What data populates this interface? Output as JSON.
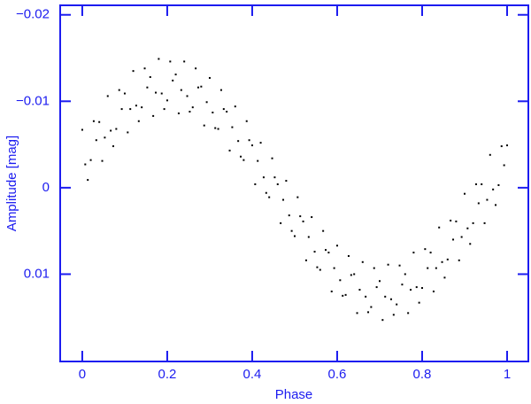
{
  "chart_data": {
    "type": "scatter",
    "x_label": "Phase",
    "y_label": "Amplitude [mag]",
    "color": "#000000",
    "axis_color": "#1c1cf0",
    "xlim": [
      -0.052,
      1.05
    ],
    "ylim": [
      0.0201,
      -0.0211
    ],
    "xticks": [
      0,
      0.2,
      0.4,
      0.6,
      0.8,
      1
    ],
    "yticks": [
      {
        "value": -0.02,
        "label": "−0.02"
      },
      {
        "value": -0.01,
        "label": "−0.01"
      },
      0,
      0.01
    ],
    "x": [
      0,
      0.007,
      0.013,
      0.02,
      0.027,
      0.033,
      0.04,
      0.047,
      0.053,
      0.06,
      0.067,
      0.073,
      0.08,
      0.087,
      0.093,
      0.1,
      0.107,
      0.113,
      0.12,
      0.127,
      0.133,
      0.14,
      0.147,
      0.153,
      0.16,
      0.167,
      0.173,
      0.18,
      0.187,
      0.193,
      0.2,
      0.207,
      0.213,
      0.22,
      0.227,
      0.233,
      0.24,
      0.247,
      0.253,
      0.26,
      0.267,
      0.273,
      0.28,
      0.287,
      0.293,
      0.3,
      0.307,
      0.313,
      0.32,
      0.327,
      0.333,
      0.34,
      0.347,
      0.353,
      0.36,
      0.367,
      0.373,
      0.38,
      0.387,
      0.393,
      0.4,
      0.407,
      0.413,
      0.42,
      0.427,
      0.433,
      0.44,
      0.447,
      0.453,
      0.46,
      0.467,
      0.473,
      0.48,
      0.487,
      0.493,
      0.5,
      0.507,
      0.513,
      0.52,
      0.527,
      0.533,
      0.54,
      0.547,
      0.553,
      0.56,
      0.567,
      0.573,
      0.58,
      0.587,
      0.593,
      0.6,
      0.607,
      0.613,
      0.62,
      0.627,
      0.633,
      0.64,
      0.647,
      0.653,
      0.66,
      0.667,
      0.673,
      0.68,
      0.687,
      0.693,
      0.7,
      0.707,
      0.713,
      0.72,
      0.727,
      0.733,
      0.74,
      0.747,
      0.753,
      0.76,
      0.767,
      0.773,
      0.78,
      0.787,
      0.793,
      0.8,
      0.807,
      0.813,
      0.82,
      0.827,
      0.833,
      0.84,
      0.847,
      0.853,
      0.86,
      0.867,
      0.873,
      0.88,
      0.887,
      0.893,
      0.9,
      0.907,
      0.913,
      0.92,
      0.927,
      0.933,
      0.94,
      0.947,
      0.953,
      0.96,
      0.967,
      0.973,
      0.98,
      0.987,
      0.993,
      1
    ],
    "values": [
      -0.0067,
      -0.0027,
      -0.0009,
      -0.0032,
      -0.0077,
      -0.0055,
      -0.0076,
      -0.0031,
      -0.0058,
      -0.0106,
      -0.0066,
      -0.0048,
      -0.0068,
      -0.0113,
      -0.0091,
      -0.0109,
      -0.0064,
      -0.0091,
      -0.0135,
      -0.0095,
      -0.0077,
      -0.0093,
      -0.0138,
      -0.0116,
      -0.0128,
      -0.0083,
      -0.011,
      -0.0149,
      -0.0109,
      -0.0091,
      -0.0101,
      -0.0146,
      -0.0124,
      -0.0131,
      -0.0086,
      -0.0113,
      -0.0146,
      -0.0106,
      -0.0088,
      -0.0093,
      -0.0138,
      -0.0116,
      -0.0117,
      -0.0072,
      -0.0099,
      -0.0127,
      -0.0087,
      -0.0069,
      -0.0068,
      -0.0113,
      -0.0091,
      -0.0088,
      -0.0043,
      -0.007,
      -0.0094,
      -0.0054,
      -0.0036,
      -0.0032,
      -0.0077,
      -0.0055,
      -0.0049,
      -0.0004,
      -0.0031,
      -0.0052,
      -0.0012,
      0.0006,
      0.0011,
      -0.0034,
      -0.0012,
      -0.0004,
      0.0041,
      0.0014,
      -0.0008,
      0.0032,
      0.005,
      0.0056,
      0.0011,
      0.0033,
      0.0039,
      0.0084,
      0.0057,
      0.0034,
      0.0074,
      0.0092,
      0.0095,
      0.005,
      0.0072,
      0.0075,
      0.012,
      0.0093,
      0.0067,
      0.0107,
      0.0125,
      0.0124,
      0.0079,
      0.0101,
      0.01,
      0.0145,
      0.0118,
      0.0086,
      0.0126,
      0.0144,
      0.0138,
      0.0093,
      0.0115,
      0.0108,
      0.0153,
      0.0126,
      0.0089,
      0.0129,
      0.0147,
      0.0135,
      0.009,
      0.0112,
      0.01,
      0.0145,
      0.0118,
      0.0075,
      0.0115,
      0.0133,
      0.0116,
      0.0071,
      0.0093,
      0.0075,
      0.012,
      0.0093,
      0.0046,
      0.0086,
      0.0104,
      0.0083,
      0.0038,
      0.006,
      0.0039,
      0.0084,
      0.0057,
      0.0007,
      0.0047,
      0.0065,
      0.0041,
      -0.0004,
      0.0018,
      -0.0004,
      0.0041,
      0.0014,
      -0.0038,
      0.0002,
      0.002,
      -0.0003,
      -0.0048,
      -0.0026,
      -0.0049
    ]
  }
}
